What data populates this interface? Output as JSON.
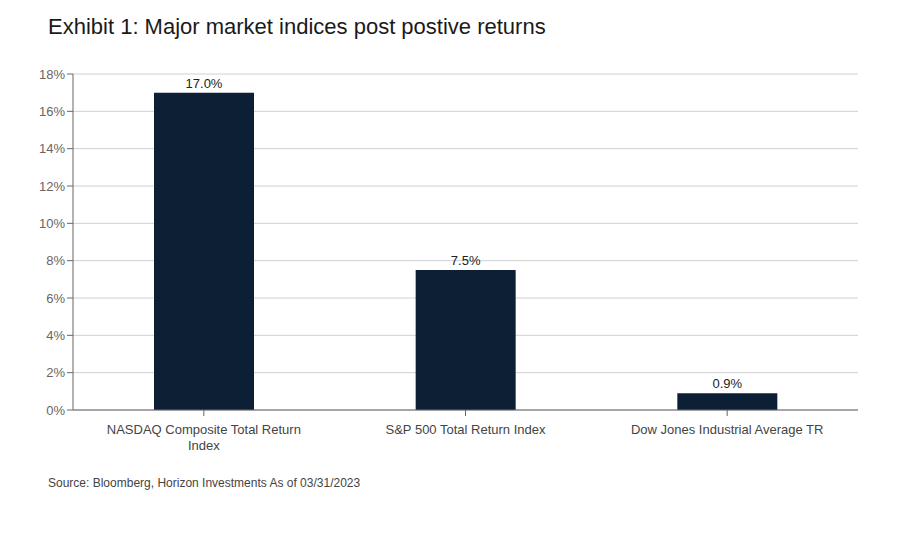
{
  "chart_data": {
    "type": "bar",
    "title": "Exhibit 1: Major market indices post postive returns",
    "categories": [
      "NASDAQ Composite Total Return\nIndex",
      "S&P 500 Total Return Index",
      "Dow Jones Industrial Average TR"
    ],
    "values": [
      17.0,
      7.5,
      0.9
    ],
    "value_labels": [
      "17.0%",
      "7.5%",
      "0.9%"
    ],
    "color": "#0d1f35",
    "ylim": [
      0,
      18
    ],
    "yticks": [
      {
        "value": 0,
        "label": "0%"
      },
      {
        "value": 2,
        "label": "2%"
      },
      {
        "value": 4,
        "label": "4%"
      },
      {
        "value": 6,
        "label": "6%"
      },
      {
        "value": 8,
        "label": "8%"
      },
      {
        "value": 10,
        "label": "10%"
      },
      {
        "value": 12,
        "label": "12%"
      },
      {
        "value": 14,
        "label": "14%"
      },
      {
        "value": 16,
        "label": "16%"
      },
      {
        "value": 18,
        "label": "18%"
      }
    ],
    "grid": true,
    "annotations": [
      "Source: Bloomberg, Horizon Investments  As of 03/31/2023"
    ]
  }
}
